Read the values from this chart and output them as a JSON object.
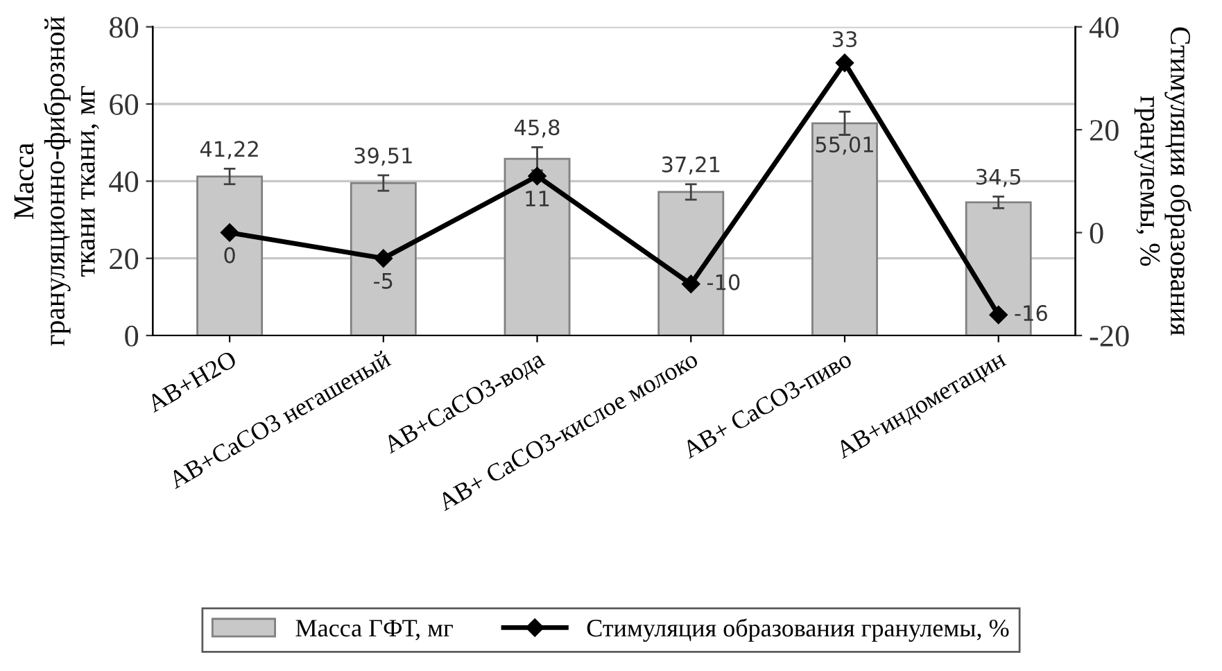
{
  "chart_data": {
    "type": "bar",
    "categories": [
      "AB+H2O",
      "AB+CaCO3 негашеный",
      "AB+CaCO3-вода",
      "AB+ CaCO3-кислое молоко",
      "AB+ CaCO3-пиво",
      "AB+индометацин"
    ],
    "ylabel": "Масса грануляционно-фиброзной ткани ткани, мг",
    "y2label": "Стимуляция образования гранулемы, %",
    "series": [
      {
        "name": "Масса ГФТ, мг",
        "color": "#c8c8c8",
        "values": [
          41.22,
          39.51,
          45.8,
          37.21,
          55.01,
          34.5
        ],
        "errors": [
          2,
          2,
          3,
          2,
          3,
          1.5
        ],
        "value_labels": [
          "41,22",
          "39,51",
          "45,8",
          "37,21",
          "55,01",
          "34,5"
        ]
      },
      {
        "name": "Стимуляция образования гранулемы, %",
        "type": "line",
        "axis": "y2",
        "color": "#000000",
        "marker": "diamond",
        "values": [
          0,
          -5,
          11,
          -10,
          33,
          -16
        ],
        "value_labels": [
          "0",
          "-5",
          "11",
          "-10",
          "33",
          "-16"
        ]
      }
    ],
    "ylim": [
      0,
      80
    ],
    "yticks": [
      0,
      20,
      40,
      60,
      80
    ],
    "y2lim": [
      -20,
      40
    ],
    "y2ticks": [
      -20,
      0,
      20,
      40
    ],
    "grid": "y",
    "legend": "bottom"
  }
}
